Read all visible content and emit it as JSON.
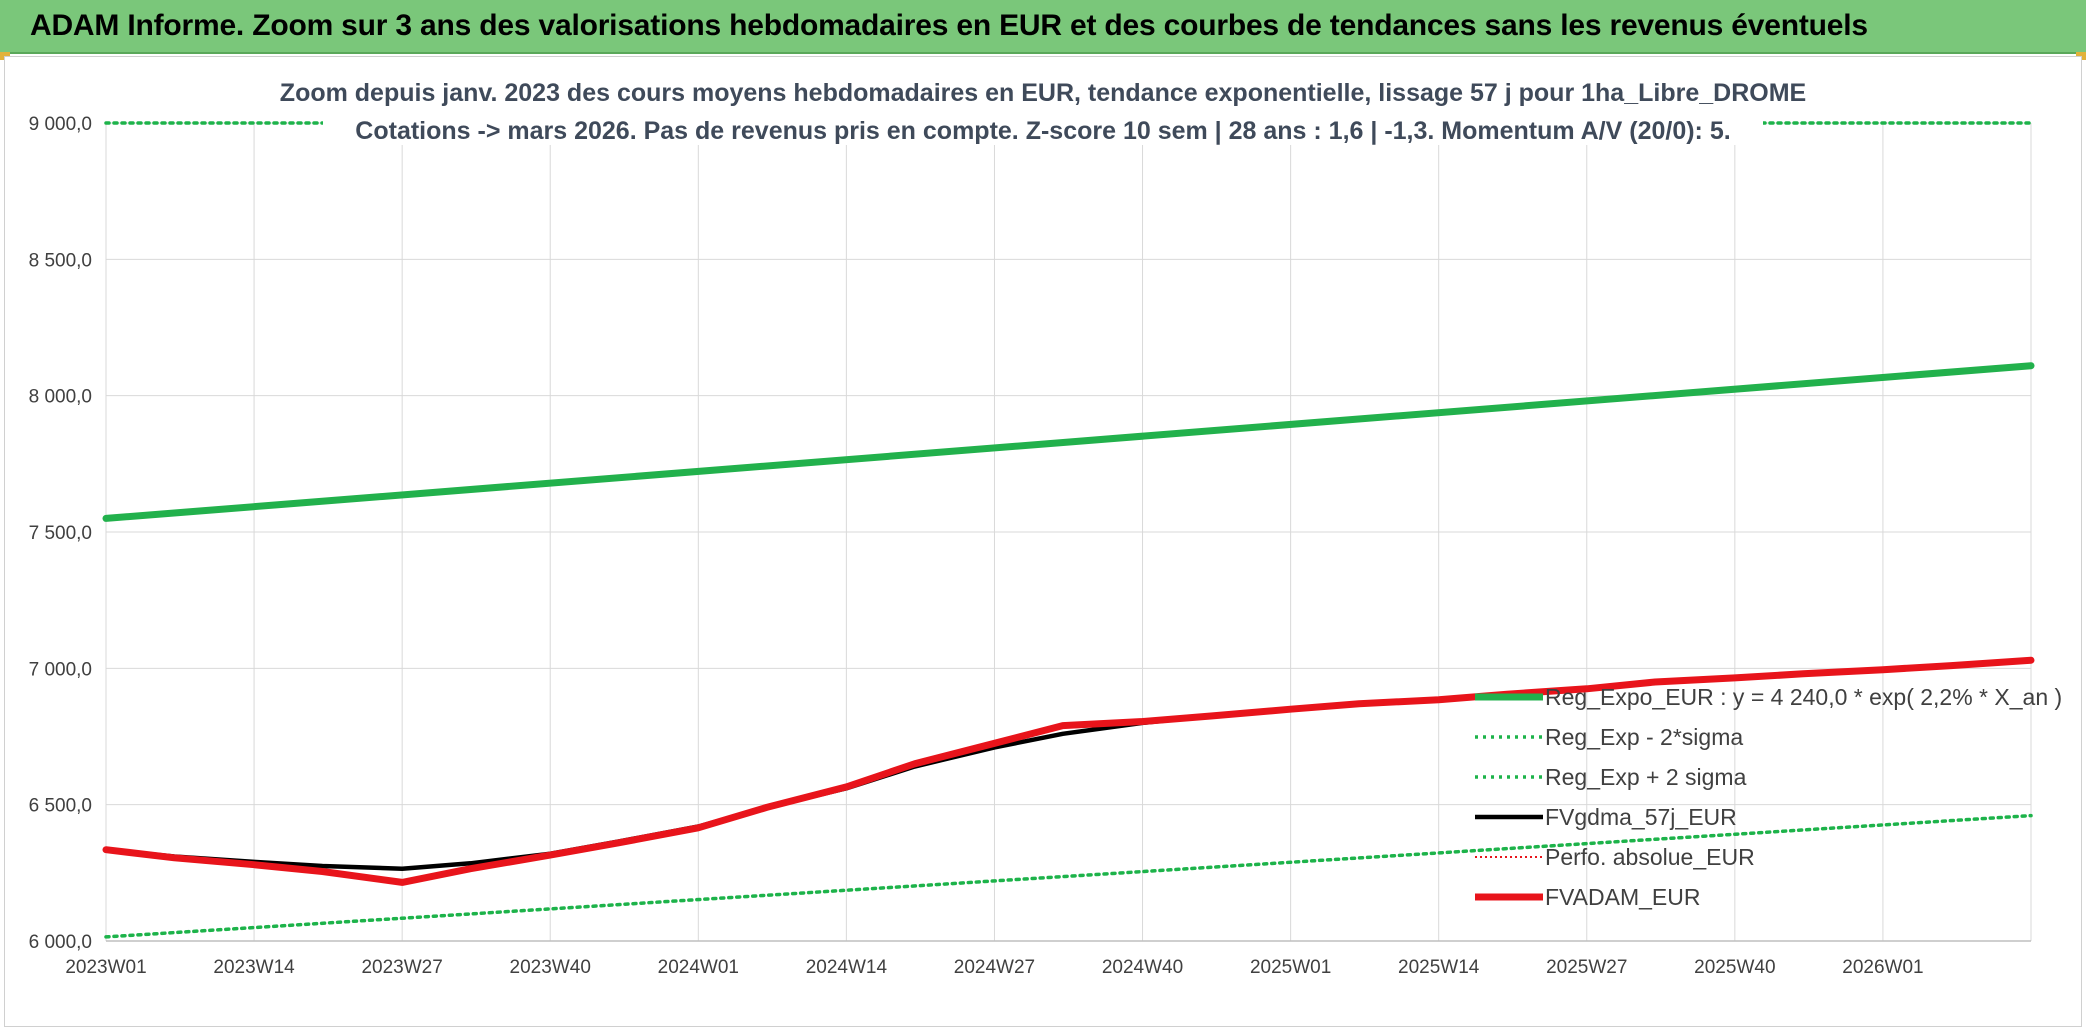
{
  "header": {
    "title": "ADAM Informe. Zoom sur 3 ans des valorisations hebdomadaires en EUR et des courbes de tendances sans les revenus éventuels"
  },
  "colors": {
    "header_bg": "#7ac77a",
    "trend_green": "#22b14c",
    "sigma_green": "#1db34a",
    "fv_black": "#000000",
    "fvadam_red": "#e8141b",
    "perfo_red": "#e8141b",
    "grid": "#d9d9d9"
  },
  "chart_data": {
    "type": "line",
    "title": "Zoom depuis janv. 2023 des cours moyens hebdomadaires en EUR, tendance exponentielle, lissage 57 j pour 1ha_Libre_DROME",
    "subtitle": "Cotations -> mars 2026. Pas de revenus pris en compte. Z-score 10 sem | 28 ans : 1,6 | -1,3. Momentum A/V (20/0): 5.",
    "xlabel": "",
    "ylabel": "",
    "x_ticks": [
      "2023W01",
      "2023W14",
      "2023W27",
      "2023W40",
      "2024W01",
      "2024W14",
      "2024W27",
      "2024W40",
      "2025W01",
      "2025W14",
      "2025W27",
      "2025W40",
      "2026W01"
    ],
    "x_range": [
      0,
      169
    ],
    "y_ticks": [
      "6 000,0",
      "6 500,0",
      "7 000,0",
      "7 500,0",
      "8 000,0",
      "8 500,0",
      "9 000,0"
    ],
    "y_tick_values": [
      6000,
      6500,
      7000,
      7500,
      8000,
      8500,
      9000
    ],
    "ylim": [
      6000,
      9000
    ],
    "grid": true,
    "legend_position": "right",
    "series": [
      {
        "name": "Reg_Expo_EUR : y = 4 240,0 * exp( 2,2% *  X_an )",
        "style": "solid-thick",
        "color": "#22b14c",
        "x": [
          0,
          169
        ],
        "values": [
          7550,
          8110
        ]
      },
      {
        "name": "Reg_Exp - 2*sigma",
        "style": "dotted",
        "color": "#1db34a",
        "x": [
          0,
          169
        ],
        "values": [
          6015,
          6460
        ]
      },
      {
        "name": "Reg_Exp + 2 sigma",
        "style": "dotted",
        "color": "#1db34a",
        "x": [
          0,
          169
        ],
        "values": [
          9000,
          9000
        ]
      },
      {
        "name": "FVgdma_57j_EUR",
        "style": "solid",
        "color": "#000000",
        "x": [
          0,
          6,
          13,
          19,
          26,
          32,
          39,
          45,
          52,
          58,
          65,
          71,
          78,
          84,
          91,
          97,
          104,
          110,
          117,
          123,
          130,
          136,
          143,
          149,
          156,
          162,
          169
        ],
        "values": [
          6335,
          6310,
          6290,
          6275,
          6265,
          6285,
          6320,
          6365,
          6420,
          6490,
          6560,
          6640,
          6710,
          6760,
          6800,
          6825,
          6850,
          6870,
          6885,
          6905,
          6925,
          6950,
          6965,
          6980,
          6995,
          7010,
          7030
        ]
      },
      {
        "name": "Perfo. absolue_EUR",
        "style": "dotted-thin",
        "color": "#e8141b",
        "x": [
          0,
          6,
          13,
          19,
          26,
          32,
          39,
          45,
          52,
          58,
          65,
          71,
          78,
          84,
          91,
          97,
          104,
          110,
          117,
          123,
          130,
          136,
          143,
          149,
          156,
          162,
          169
        ],
        "values": [
          6335,
          6305,
          6280,
          6255,
          6215,
          6265,
          6315,
          6360,
          6415,
          6490,
          6565,
          6650,
          6725,
          6790,
          6805,
          6825,
          6850,
          6870,
          6885,
          6905,
          6925,
          6950,
          6965,
          6980,
          6995,
          7010,
          7030
        ]
      },
      {
        "name": "FVADAM_EUR",
        "style": "solid-thick",
        "color": "#e8141b",
        "x": [
          0,
          6,
          13,
          19,
          26,
          32,
          39,
          45,
          52,
          58,
          65,
          71,
          78,
          84,
          91,
          97,
          104,
          110,
          117,
          123,
          130,
          136,
          143,
          149,
          156,
          162,
          169
        ],
        "values": [
          6335,
          6305,
          6280,
          6255,
          6215,
          6265,
          6315,
          6360,
          6415,
          6490,
          6565,
          6650,
          6725,
          6790,
          6805,
          6825,
          6850,
          6870,
          6885,
          6905,
          6925,
          6950,
          6965,
          6980,
          6995,
          7010,
          7030
        ]
      }
    ]
  }
}
